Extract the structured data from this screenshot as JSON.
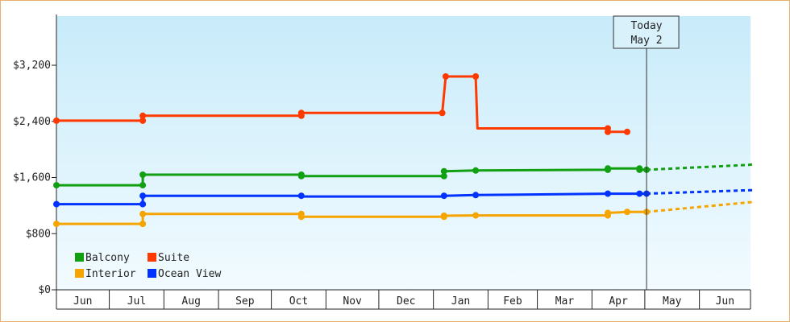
{
  "chart_data": {
    "type": "line",
    "title": "",
    "xlabel": "",
    "ylabel": "",
    "ylim": [
      0,
      3900
    ],
    "y_ticks": [
      {
        "value": 0,
        "label": "$0"
      },
      {
        "value": 800,
        "label": "$800"
      },
      {
        "value": 1600,
        "label": "$1,600"
      },
      {
        "value": 2400,
        "label": "$2,400"
      },
      {
        "value": 3200,
        "label": "$3,200"
      }
    ],
    "x_range": [
      "2024-06-01",
      "2025-06-30"
    ],
    "months": [
      {
        "label": "Jun",
        "start": "2024-06-01",
        "end": "2024-07-01"
      },
      {
        "label": "Jul",
        "start": "2024-07-01",
        "end": "2024-08-01"
      },
      {
        "label": "Aug",
        "start": "2024-08-01",
        "end": "2024-09-01"
      },
      {
        "label": "Sep",
        "start": "2024-09-01",
        "end": "2024-10-01"
      },
      {
        "label": "Oct",
        "start": "2024-10-01",
        "end": "2024-11-01"
      },
      {
        "label": "Nov",
        "start": "2024-11-01",
        "end": "2024-12-01"
      },
      {
        "label": "Dec",
        "start": "2024-12-01",
        "end": "2025-01-01"
      },
      {
        "label": "Jan",
        "start": "2025-01-01",
        "end": "2025-02-01"
      },
      {
        "label": "Feb",
        "start": "2025-02-01",
        "end": "2025-03-01"
      },
      {
        "label": "Mar",
        "start": "2025-03-01",
        "end": "2025-04-01"
      },
      {
        "label": "Apr",
        "start": "2025-04-01",
        "end": "2025-05-01"
      },
      {
        "label": "May",
        "start": "2025-05-01",
        "end": "2025-06-01"
      },
      {
        "label": "Jun",
        "start": "2025-06-01",
        "end": "2025-07-01"
      }
    ],
    "today": {
      "date": "2025-05-02",
      "line1": "Today",
      "line2": "May 2"
    },
    "grid": false,
    "legend_position": "bottom-left",
    "series": [
      {
        "name": "Balcony",
        "color": "#11a011",
        "points": [
          [
            "2024-06-01",
            1490
          ],
          [
            "2024-07-20",
            1490
          ],
          [
            "2024-07-20",
            1640
          ],
          [
            "2024-10-18",
            1640
          ],
          [
            "2024-10-18",
            1620
          ],
          [
            "2025-01-07",
            1620
          ],
          [
            "2025-01-07",
            1690
          ],
          [
            "2025-01-25",
            1700
          ],
          [
            "2025-04-10",
            1710
          ],
          [
            "2025-04-10",
            1730
          ],
          [
            "2025-04-28",
            1730
          ],
          [
            "2025-04-28",
            1710
          ],
          [
            "2025-05-02",
            1710
          ]
        ],
        "markers": [
          [
            "2024-06-01",
            1490
          ],
          [
            "2024-07-20",
            1490
          ],
          [
            "2024-07-20",
            1640
          ],
          [
            "2024-10-18",
            1640
          ],
          [
            "2024-10-18",
            1620
          ],
          [
            "2025-01-07",
            1620
          ],
          [
            "2025-01-07",
            1690
          ],
          [
            "2025-01-25",
            1700
          ],
          [
            "2025-04-10",
            1710
          ],
          [
            "2025-04-10",
            1730
          ],
          [
            "2025-04-28",
            1730
          ],
          [
            "2025-04-28",
            1710
          ],
          [
            "2025-05-02",
            1710
          ]
        ],
        "forecast": [
          [
            "2025-05-02",
            1710
          ],
          [
            "2025-06-29",
            1780
          ],
          [
            "2025-07-01",
            1785
          ]
        ]
      },
      {
        "name": "Suite",
        "color": "#ff3a00",
        "points": [
          [
            "2024-06-01",
            2410
          ],
          [
            "2024-07-20",
            2410
          ],
          [
            "2024-07-20",
            2480
          ],
          [
            "2024-10-18",
            2480
          ],
          [
            "2024-10-18",
            2520
          ],
          [
            "2025-01-06",
            2520
          ],
          [
            "2025-01-08",
            3040
          ],
          [
            "2025-01-25",
            3040
          ],
          [
            "2025-01-26",
            2300
          ],
          [
            "2025-04-10",
            2300
          ],
          [
            "2025-04-10",
            2250
          ],
          [
            "2025-04-21",
            2250
          ]
        ],
        "markers": [
          [
            "2024-06-01",
            2410
          ],
          [
            "2024-07-20",
            2410
          ],
          [
            "2024-07-20",
            2480
          ],
          [
            "2024-10-18",
            2480
          ],
          [
            "2024-10-18",
            2520
          ],
          [
            "2025-01-06",
            2520
          ],
          [
            "2025-01-08",
            3040
          ],
          [
            "2025-01-25",
            3040
          ],
          [
            "2025-04-10",
            2300
          ],
          [
            "2025-04-10",
            2250
          ],
          [
            "2025-04-21",
            2250
          ]
        ],
        "forecast": []
      },
      {
        "name": "Interior",
        "color": "#f5a400",
        "points": [
          [
            "2024-06-01",
            940
          ],
          [
            "2024-07-20",
            940
          ],
          [
            "2024-07-20",
            1080
          ],
          [
            "2024-10-18",
            1080
          ],
          [
            "2024-10-18",
            1040
          ],
          [
            "2025-01-07",
            1040
          ],
          [
            "2025-01-07",
            1055
          ],
          [
            "2025-01-25",
            1060
          ],
          [
            "2025-04-10",
            1060
          ],
          [
            "2025-04-10",
            1095
          ],
          [
            "2025-04-21",
            1110
          ],
          [
            "2025-05-02",
            1110
          ]
        ],
        "markers": [
          [
            "2024-06-01",
            940
          ],
          [
            "2024-07-20",
            940
          ],
          [
            "2024-07-20",
            1080
          ],
          [
            "2024-10-18",
            1080
          ],
          [
            "2024-10-18",
            1040
          ],
          [
            "2025-01-07",
            1040
          ],
          [
            "2025-01-07",
            1055
          ],
          [
            "2025-01-25",
            1060
          ],
          [
            "2025-04-10",
            1060
          ],
          [
            "2025-04-10",
            1095
          ],
          [
            "2025-04-21",
            1110
          ],
          [
            "2025-05-02",
            1110
          ]
        ],
        "forecast": [
          [
            "2025-05-02",
            1110
          ],
          [
            "2025-07-01",
            1250
          ]
        ]
      },
      {
        "name": "Ocean View",
        "color": "#0033ff",
        "points": [
          [
            "2024-06-01",
            1220
          ],
          [
            "2024-07-20",
            1220
          ],
          [
            "2024-07-20",
            1340
          ],
          [
            "2024-10-18",
            1340
          ],
          [
            "2024-10-18",
            1330
          ],
          [
            "2025-01-07",
            1330
          ],
          [
            "2025-01-07",
            1340
          ],
          [
            "2025-01-25",
            1350
          ],
          [
            "2025-04-10",
            1370
          ],
          [
            "2025-04-28",
            1370
          ],
          [
            "2025-05-02",
            1370
          ]
        ],
        "markers": [
          [
            "2024-06-01",
            1220
          ],
          [
            "2024-07-20",
            1220
          ],
          [
            "2024-07-20",
            1340
          ],
          [
            "2024-10-18",
            1340
          ],
          [
            "2025-01-07",
            1340
          ],
          [
            "2025-01-25",
            1350
          ],
          [
            "2025-04-10",
            1370
          ],
          [
            "2025-04-28",
            1370
          ],
          [
            "2025-05-02",
            1370
          ]
        ],
        "forecast": [
          [
            "2025-05-02",
            1370
          ],
          [
            "2025-07-01",
            1420
          ]
        ]
      }
    ]
  }
}
